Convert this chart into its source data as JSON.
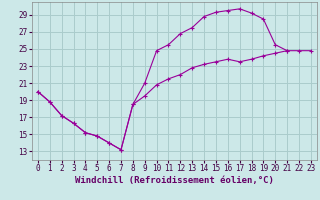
{
  "xlabel": "Windchill (Refroidissement éolien,°C)",
  "bg_color": "#cce8e8",
  "line_color": "#990099",
  "grid_color": "#aacccc",
  "xlim": [
    -0.5,
    23.5
  ],
  "ylim": [
    12,
    30.5
  ],
  "xticks": [
    0,
    1,
    2,
    3,
    4,
    5,
    6,
    7,
    8,
    9,
    10,
    11,
    12,
    13,
    14,
    15,
    16,
    17,
    18,
    19,
    20,
    21,
    22,
    23
  ],
  "yticks": [
    13,
    15,
    17,
    19,
    21,
    23,
    25,
    27,
    29
  ],
  "upper_x": [
    0,
    1,
    2,
    3,
    4,
    5,
    6,
    7,
    8,
    9,
    10,
    11,
    12,
    13,
    14,
    15,
    16,
    17,
    18,
    19,
    20,
    21
  ],
  "upper_y": [
    20.0,
    18.8,
    17.2,
    16.3,
    15.2,
    14.8,
    14.0,
    13.2,
    18.5,
    21.0,
    24.8,
    25.5,
    26.8,
    27.5,
    28.8,
    29.3,
    29.5,
    29.7,
    29.2,
    28.5,
    25.5,
    24.8
  ],
  "lower_x": [
    0,
    1,
    2,
    3,
    4,
    5,
    6,
    7,
    8,
    9,
    10,
    11,
    12,
    13,
    14,
    15,
    16,
    17,
    18,
    19,
    20,
    21,
    22,
    23
  ],
  "lower_y": [
    20.0,
    18.8,
    17.2,
    16.3,
    15.2,
    14.8,
    14.0,
    13.2,
    18.5,
    19.5,
    20.8,
    21.5,
    22.0,
    22.8,
    23.2,
    23.5,
    23.8,
    23.5,
    23.8,
    24.2,
    24.5,
    24.8,
    24.8,
    24.8
  ],
  "tick_fontsize": 5.5,
  "xlabel_fontsize": 6.5,
  "xlabel_color": "#660066"
}
